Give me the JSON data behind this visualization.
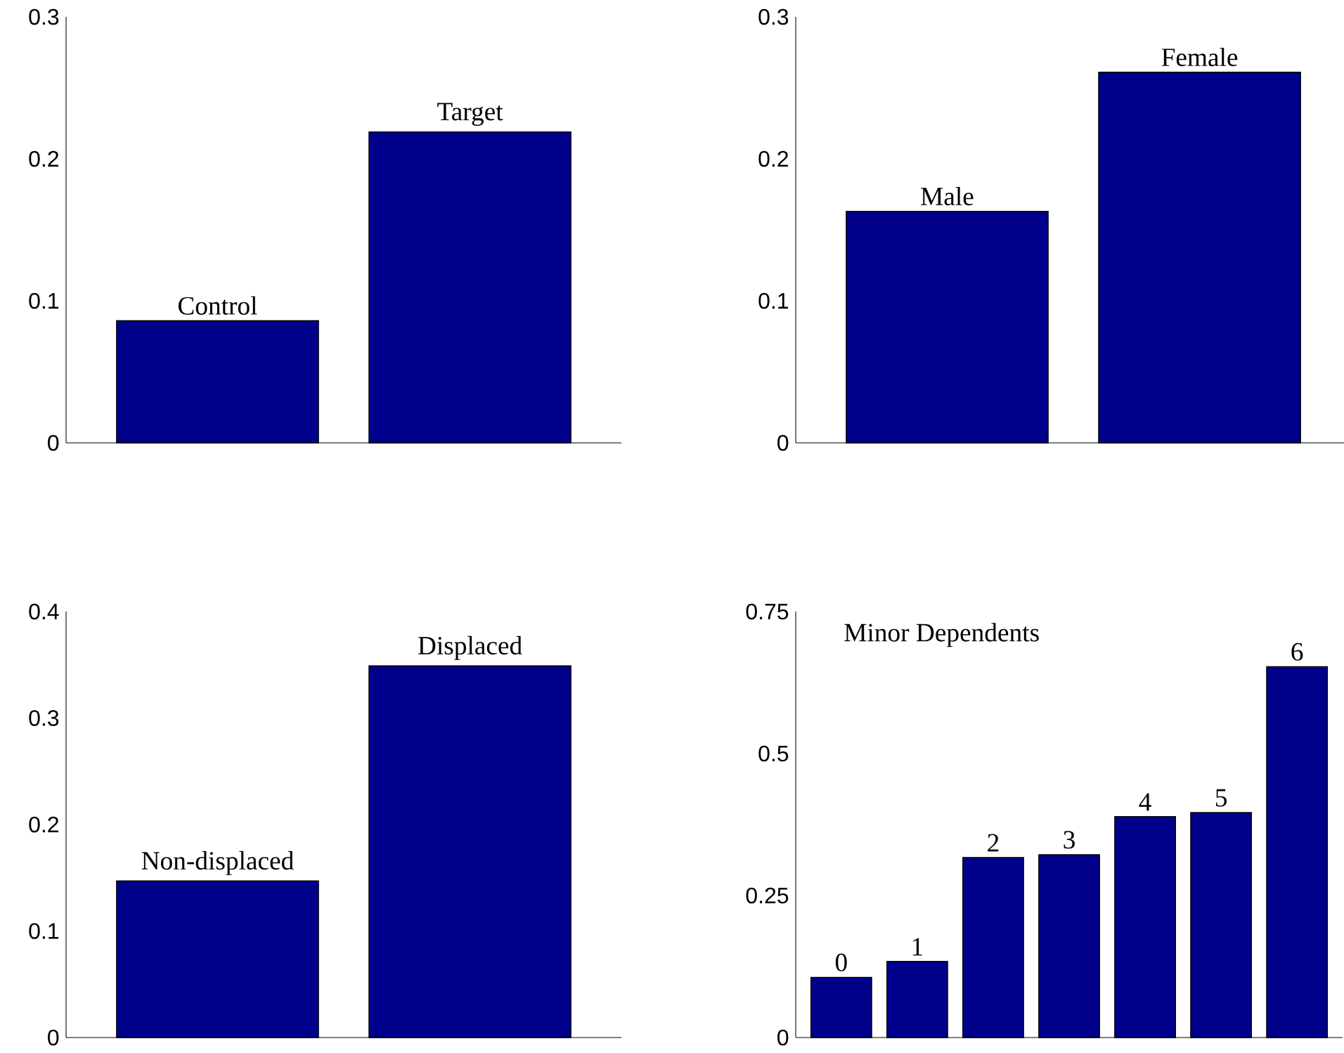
{
  "chart_data": [
    {
      "type": "bar",
      "categories": [
        "Control",
        "Target"
      ],
      "values": [
        0.086,
        0.219
      ],
      "color": "#00008b",
      "ylim": [
        0,
        0.3
      ],
      "yticks": [
        0,
        0.1,
        0.2,
        0.3
      ],
      "tick_labels": "y"
    },
    {
      "type": "bar",
      "categories": [
        "Male",
        "Female"
      ],
      "values": [
        0.163,
        0.261
      ],
      "color": "#00008b",
      "ylim": [
        0,
        0.3
      ],
      "yticks": [
        0,
        0.1,
        0.2,
        0.3
      ],
      "tick_labels": "y"
    },
    {
      "type": "bar",
      "categories": [
        "Non-displaced",
        "Displaced"
      ],
      "values": [
        0.147,
        0.349
      ],
      "color": "#00008b",
      "ylim": [
        0,
        0.4
      ],
      "yticks": [
        0,
        0.1,
        0.2,
        0.3,
        0.4
      ],
      "tick_labels": "y"
    },
    {
      "type": "bar",
      "categories": [
        "0",
        "1",
        "2",
        "3",
        "4",
        "5",
        "6"
      ],
      "values": [
        0.106,
        0.134,
        0.317,
        0.322,
        0.389,
        0.396,
        0.653
      ],
      "color": "#00008b",
      "ylim": [
        0,
        0.75
      ],
      "yticks": [
        0,
        0.25,
        0.5,
        0.75
      ],
      "tick_labels": "y",
      "annotations": [
        "Minor Dependents"
      ]
    }
  ]
}
